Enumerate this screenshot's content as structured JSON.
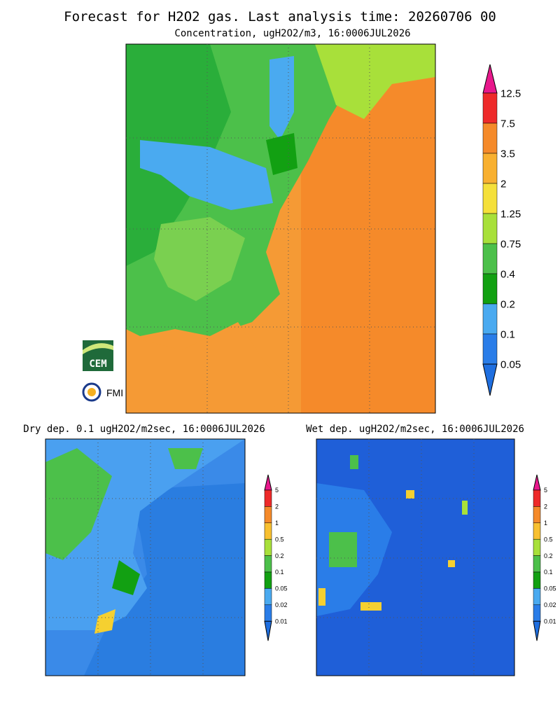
{
  "title": "Forecast for H2O2 gas. Last analysis time: 20260706 00",
  "main": {
    "subtitle": "Concentration, ugH2O2/m3, 16:0006JUL2026",
    "colorbar": {
      "labels": [
        "12.5",
        "7.5",
        "3.5",
        "2",
        "1.25",
        "0.75",
        "0.4",
        "0.2",
        "0.1",
        "0.05"
      ],
      "colors": [
        "#e8188c",
        "#ee2a2a",
        "#f58a2a",
        "#f8b030",
        "#f5e03a",
        "#a8e03a",
        "#4cc04a",
        "#12a012",
        "#4aaaf0",
        "#2a7de8",
        "#1f6fe0"
      ]
    }
  },
  "dry": {
    "title": "Dry dep. 0.1 ugH2O2/m2sec, 16:0006JUL2026",
    "colorbar": {
      "labels": [
        "5",
        "2",
        "1",
        "0.5",
        "0.2",
        "0.1",
        "0.05",
        "0.02",
        "0.01"
      ],
      "colors": [
        "#e8188c",
        "#ee2a2a",
        "#f58a2a",
        "#f8c030",
        "#a8e03a",
        "#4cc04a",
        "#12a012",
        "#4aaaf0",
        "#2a7de8",
        "#1f6fe0"
      ]
    }
  },
  "wet": {
    "title": "Wet dep. ugH2O2/m2sec, 16:0006JUL2026",
    "colorbar": {
      "labels": [
        "5",
        "2",
        "1",
        "0.5",
        "0.2",
        "0.1",
        "0.05",
        "0.02",
        "0.01"
      ],
      "colors": [
        "#e8188c",
        "#ee2a2a",
        "#f58a2a",
        "#f8c030",
        "#a8e03a",
        "#4cc04a",
        "#12a012",
        "#4aaaf0",
        "#2a7de8",
        "#1f6fe0"
      ]
    }
  },
  "logos": {
    "cem": "CEM",
    "fmi": "FMI"
  }
}
